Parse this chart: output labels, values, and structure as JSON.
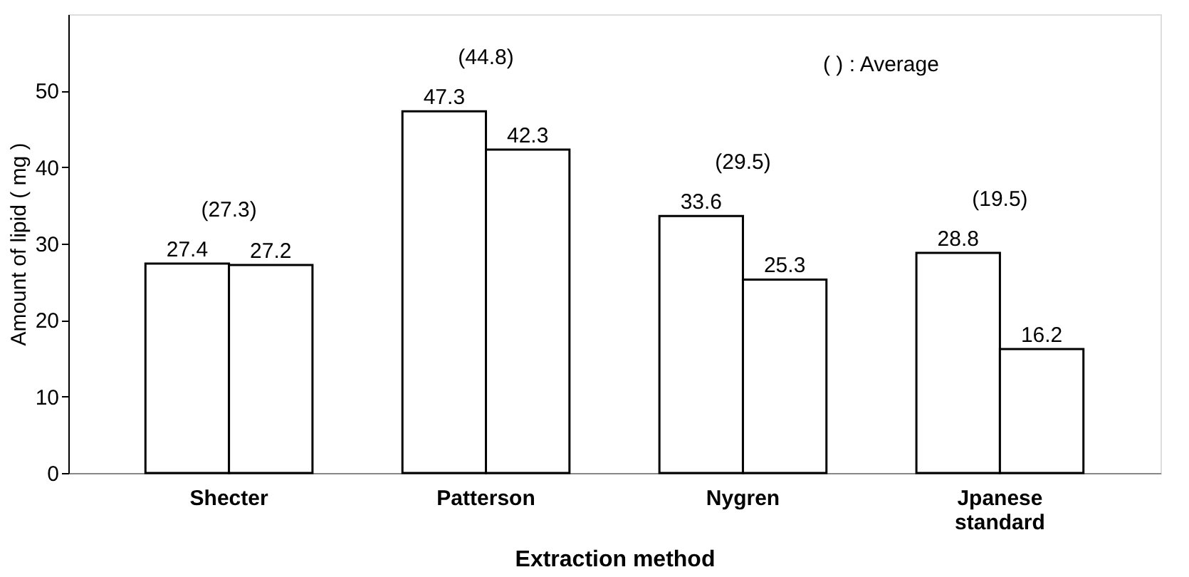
{
  "chart_data": {
    "type": "bar",
    "xlabel": "Extraction method",
    "ylabel": "Amount of lipid ( mg )",
    "categories": [
      "Shecter",
      "Patterson",
      "Nygren",
      "Jpanese standard"
    ],
    "series": [
      {
        "color": "#ffffff",
        "values": [
          27.4,
          47.3,
          33.6,
          28.8
        ]
      },
      {
        "color": "#ffffff",
        "values": [
          27.2,
          42.3,
          25.3,
          16.2
        ]
      }
    ],
    "ylim": [
      0,
      60
    ],
    "yticks": [
      0,
      10,
      20,
      30,
      40,
      50
    ],
    "data_labels": true,
    "grid": false,
    "legend": false,
    "annotations": [
      "(27.3)",
      "(44.8)",
      "(29.5)",
      "(19.5)",
      "( ) : Average"
    ]
  }
}
